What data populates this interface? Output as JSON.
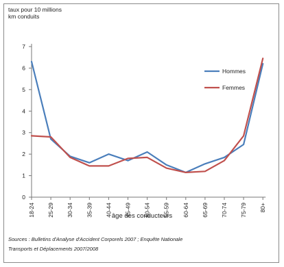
{
  "chart_data": {
    "type": "line",
    "ylabel_lines": [
      "taux pour 10 millions",
      "km conduits"
    ],
    "xlabel": "âge des conducteurs",
    "categories": [
      "18-24",
      "25-29",
      "30-34",
      "35-39",
      "40-44",
      "45-49",
      "50-54",
      "55-59",
      "60-64",
      "65-69",
      "70-74",
      "75-79",
      "80+"
    ],
    "yticks": [
      "0",
      "1",
      "2",
      "3",
      "4",
      "5",
      "6",
      "7"
    ],
    "ylim": [
      0,
      7
    ],
    "grid": false,
    "legend_position": "right",
    "series": [
      {
        "name": "Hommes",
        "color": "#4a7ebb",
        "values": [
          6.3,
          2.7,
          1.9,
          1.6,
          2.0,
          1.7,
          2.1,
          1.5,
          1.15,
          1.55,
          1.85,
          2.45,
          6.2
        ]
      },
      {
        "name": "Femmes",
        "color": "#c0504d",
        "values": [
          2.85,
          2.8,
          1.85,
          1.45,
          1.45,
          1.8,
          1.85,
          1.35,
          1.15,
          1.2,
          1.7,
          2.85,
          6.45
        ]
      }
    ],
    "sources_lines": [
      "Sources :  Bulletins d'Analyse d'Accident Corporels 2007 ; Enquête Nationale",
      "Transports et Déplacements 2007/2008"
    ]
  }
}
